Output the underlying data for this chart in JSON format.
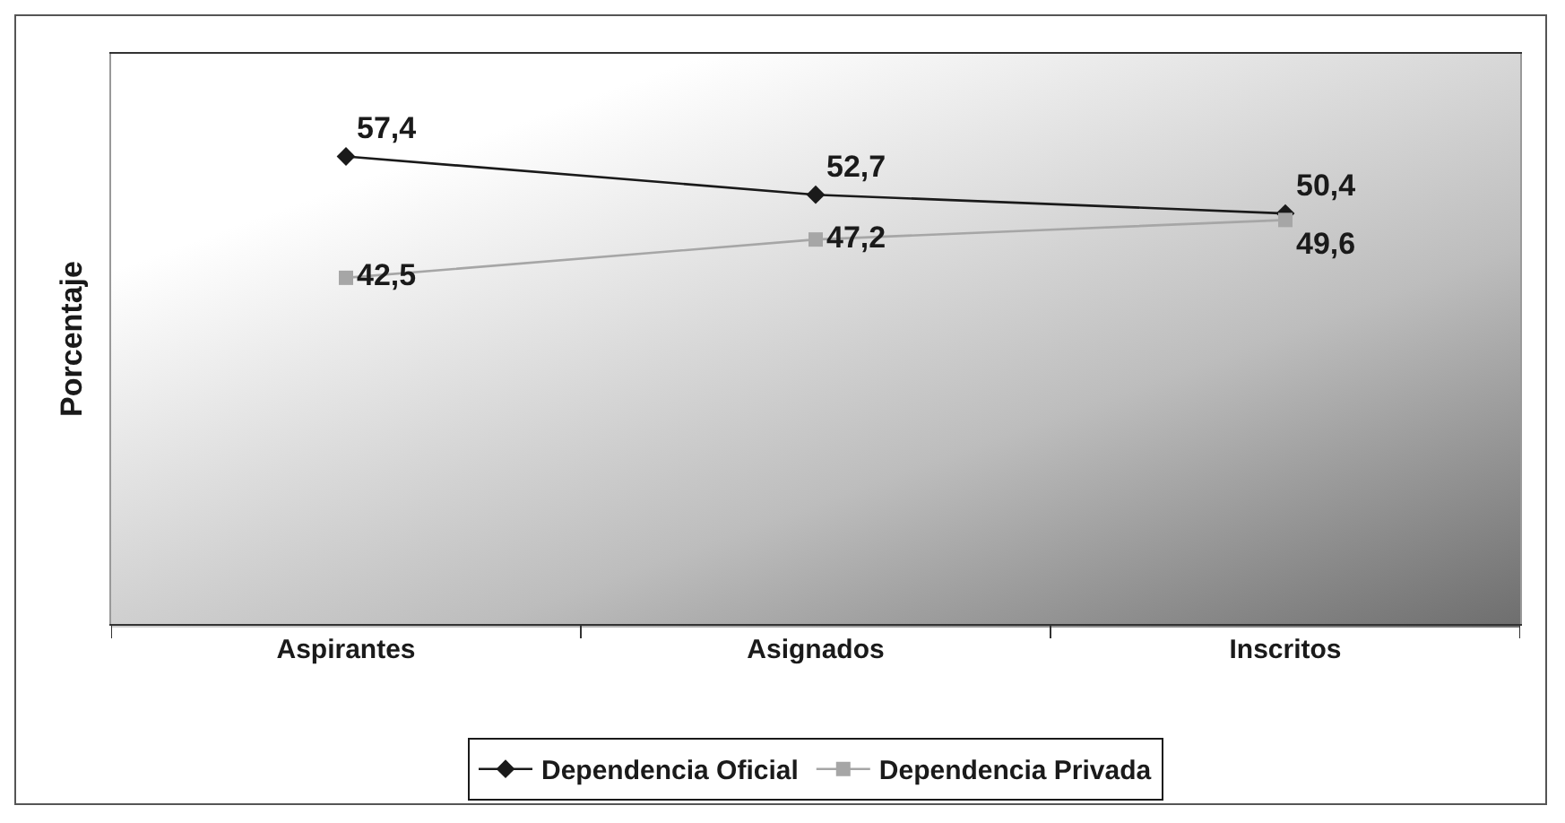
{
  "chart_data": {
    "type": "line",
    "ylabel": "Porcentaje",
    "categories": [
      "Aspirantes",
      "Asignados",
      "Inscritos"
    ],
    "series": [
      {
        "name": "Dependencia Oficial",
        "color": "#1a1a1a",
        "marker": "diamond",
        "values": [
          57.4,
          52.7,
          50.4
        ],
        "value_labels": [
          "57,4",
          "52,7",
          "50,4"
        ]
      },
      {
        "name": "Dependencia Privada",
        "color": "#a6a6a6",
        "marker": "square",
        "values": [
          42.5,
          47.2,
          49.6
        ],
        "value_labels": [
          "42,5",
          "47,2",
          "49,6"
        ]
      }
    ],
    "ylim": [
      0,
      70
    ],
    "tick_labels": "x",
    "grid": false,
    "legend": "bottom",
    "line_style": "solid"
  }
}
